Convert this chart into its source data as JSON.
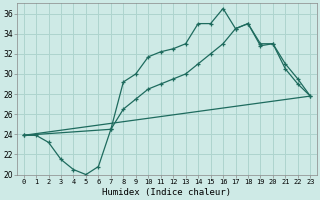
{
  "title": "",
  "xlabel": "Humidex (Indice chaleur)",
  "ylabel": "",
  "background_color": "#ceeae6",
  "grid_color": "#aed4ce",
  "line_color": "#1e6b5e",
  "xlim": [
    -0.5,
    23.5
  ],
  "ylim": [
    20,
    37
  ],
  "yticks": [
    20,
    22,
    24,
    26,
    28,
    30,
    32,
    34,
    36
  ],
  "xtick_labels": [
    "0",
    "1",
    "2",
    "3",
    "4",
    "5",
    "6",
    "7",
    "8",
    "9",
    "10",
    "11",
    "12",
    "13",
    "14",
    "15",
    "16",
    "17",
    "18",
    "19",
    "20",
    "21",
    "22",
    "23"
  ],
  "line1_x": [
    0,
    1,
    2,
    3,
    4,
    5,
    6,
    7,
    8,
    9,
    10,
    11,
    12,
    13,
    14,
    15,
    16,
    17,
    18,
    19,
    20,
    21,
    22,
    23
  ],
  "line1_y": [
    23.9,
    23.9,
    23.2,
    21.5,
    20.5,
    20.0,
    20.8,
    24.5,
    29.2,
    30.0,
    31.7,
    32.2,
    32.5,
    33.0,
    35.0,
    35.0,
    36.5,
    34.5,
    35.0,
    32.8,
    33.0,
    30.5,
    29.0,
    27.8
  ],
  "line2_x": [
    0,
    7,
    8,
    9,
    10,
    11,
    12,
    13,
    14,
    15,
    16,
    17,
    18,
    19,
    20,
    21,
    22,
    23
  ],
  "line2_y": [
    23.9,
    24.5,
    26.5,
    27.5,
    28.5,
    29.0,
    29.5,
    30.0,
    31.0,
    32.0,
    33.0,
    34.5,
    35.0,
    33.0,
    33.0,
    31.0,
    29.5,
    27.8
  ],
  "line3_x": [
    0,
    23
  ],
  "line3_y": [
    23.9,
    27.8
  ]
}
